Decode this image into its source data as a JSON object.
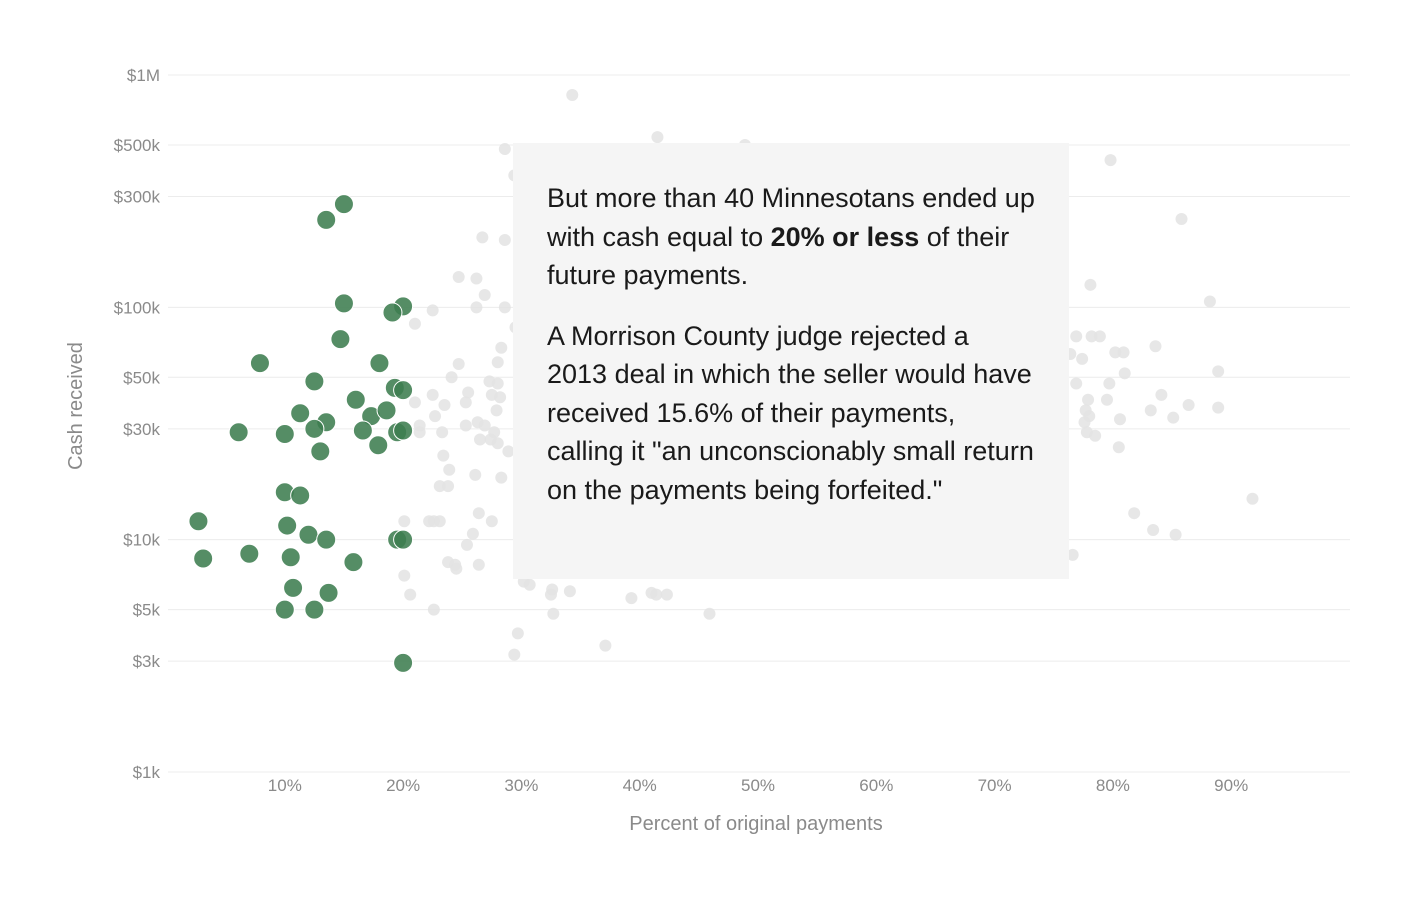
{
  "annotation": {
    "paragraph1": {
      "before": "But more than 40 Minnesotans ended up with cash equal to ",
      "emphasis": "20% or less",
      "after": " of their future payments."
    },
    "paragraph2": "A Morrison County judge rejected a 2013 deal in which the seller would have received 15.6% of their payments, calling it \"an unconscionably small return on the payments being forfeited.\""
  },
  "chart_data": {
    "type": "scatter",
    "xlabel": "Percent of original payments",
    "ylabel": "Cash received",
    "x_scale": "linear",
    "y_scale": "log",
    "xlim": [
      0,
      100
    ],
    "ylim": [
      1000,
      1000000
    ],
    "x_ticks": [
      {
        "value": 10,
        "label": "10%"
      },
      {
        "value": 20,
        "label": "20%"
      },
      {
        "value": 30,
        "label": "30%"
      },
      {
        "value": 40,
        "label": "40%"
      },
      {
        "value": 50,
        "label": "50%"
      },
      {
        "value": 60,
        "label": "60%"
      },
      {
        "value": 70,
        "label": "70%"
      },
      {
        "value": 80,
        "label": "80%"
      },
      {
        "value": 90,
        "label": "90%"
      }
    ],
    "y_ticks": [
      {
        "value": 1000,
        "label": "$1k"
      },
      {
        "value": 3000,
        "label": "$3k"
      },
      {
        "value": 5000,
        "label": "$5k"
      },
      {
        "value": 10000,
        "label": "$10k"
      },
      {
        "value": 30000,
        "label": "$30k"
      },
      {
        "value": 50000,
        "label": "$50k"
      },
      {
        "value": 100000,
        "label": "$100k"
      },
      {
        "value": 300000,
        "label": "$300k"
      },
      {
        "value": 500000,
        "label": "$500k"
      },
      {
        "value": 1000000,
        "label": "$1M"
      }
    ],
    "grid": true,
    "colors": {
      "highlighted": "#3e7d50",
      "other": "#e3e3e3"
    },
    "series": [
      {
        "group": "other",
        "points": [
          [
            34.3,
            820000
          ],
          [
            41.5,
            540000
          ],
          [
            48.9,
            500000
          ],
          [
            28.6,
            480000
          ],
          [
            29.4,
            370000
          ],
          [
            26.7,
            200000
          ],
          [
            28.6,
            195000
          ],
          [
            24.7,
            135000
          ],
          [
            26.2,
            133000
          ],
          [
            26.9,
            113000
          ],
          [
            26.2,
            100000
          ],
          [
            28.6,
            100000
          ],
          [
            22.5,
            97000
          ],
          [
            21,
            85000
          ],
          [
            29.5,
            82000
          ],
          [
            28.3,
            67000
          ],
          [
            24.7,
            57000
          ],
          [
            28,
            58000
          ],
          [
            24.1,
            50000
          ],
          [
            27.3,
            48000
          ],
          [
            28,
            47000
          ],
          [
            25.5,
            43000
          ],
          [
            27.5,
            42000
          ],
          [
            28.2,
            41000
          ],
          [
            22.5,
            42000
          ],
          [
            25.3,
            39000
          ],
          [
            23.5,
            38000
          ],
          [
            21,
            39000
          ],
          [
            27.9,
            36000
          ],
          [
            22.7,
            34000
          ],
          [
            26.3,
            32000
          ],
          [
            26.9,
            31000
          ],
          [
            21.4,
            31000
          ],
          [
            25.3,
            31000
          ],
          [
            23.3,
            29000
          ],
          [
            27.7,
            29000
          ],
          [
            21.4,
            29000
          ],
          [
            26.5,
            27000
          ],
          [
            27.4,
            27000
          ],
          [
            28,
            26000
          ],
          [
            28.9,
            24000
          ],
          [
            23.4,
            23000
          ],
          [
            23.9,
            20000
          ],
          [
            26.1,
            19000
          ],
          [
            28.3,
            18500
          ],
          [
            23.1,
            17000
          ],
          [
            23.8,
            17000
          ],
          [
            26.4,
            13000
          ],
          [
            20.1,
            12000
          ],
          [
            22.2,
            12000
          ],
          [
            23.1,
            12000
          ],
          [
            27.5,
            12000
          ],
          [
            22.6,
            12000
          ],
          [
            25.9,
            10600
          ],
          [
            25.4,
            9500
          ],
          [
            23.8,
            8000
          ],
          [
            24.4,
            7800
          ],
          [
            26.4,
            7800
          ],
          [
            24.5,
            7500
          ],
          [
            20.1,
            7000
          ],
          [
            30.2,
            6600
          ],
          [
            30.7,
            6400
          ],
          [
            20.6,
            5800
          ],
          [
            22.6,
            5000
          ],
          [
            32.6,
            6100
          ],
          [
            34.1,
            6000
          ],
          [
            32.5,
            5800
          ],
          [
            39.3,
            5600
          ],
          [
            41,
            5900
          ],
          [
            41.4,
            5800
          ],
          [
            42.3,
            5800
          ],
          [
            45.9,
            4800
          ],
          [
            32.7,
            4800
          ],
          [
            29.7,
            3950
          ],
          [
            37.1,
            3500
          ],
          [
            29.4,
            3200
          ],
          [
            79.8,
            430000
          ],
          [
            85.8,
            240000
          ],
          [
            78.1,
            125000
          ],
          [
            88.2,
            106000
          ],
          [
            76.9,
            75000
          ],
          [
            78.2,
            75000
          ],
          [
            78.9,
            75000
          ],
          [
            76.4,
            63000
          ],
          [
            80.2,
            64000
          ],
          [
            80.9,
            64000
          ],
          [
            83.6,
            68000
          ],
          [
            77.4,
            60000
          ],
          [
            81,
            52000
          ],
          [
            88.9,
            53000
          ],
          [
            76.9,
            47000
          ],
          [
            79.7,
            47000
          ],
          [
            84.1,
            42000
          ],
          [
            77.9,
            40000
          ],
          [
            79.5,
            40000
          ],
          [
            86.4,
            38000
          ],
          [
            88.9,
            37000
          ],
          [
            77.7,
            36000
          ],
          [
            83.2,
            36000
          ],
          [
            78,
            34000
          ],
          [
            85.1,
            33500
          ],
          [
            80.6,
            33000
          ],
          [
            77.6,
            32000
          ],
          [
            77.8,
            29000
          ],
          [
            78.5,
            28000
          ],
          [
            80.5,
            25000
          ],
          [
            91.8,
            15000
          ],
          [
            81.8,
            13000
          ],
          [
            83.4,
            11000
          ],
          [
            85.3,
            10500
          ],
          [
            76.6,
            8600
          ]
        ]
      },
      {
        "group": "highlighted",
        "points": [
          [
            15,
            278000
          ],
          [
            13.5,
            238000
          ],
          [
            15,
            104000
          ],
          [
            20,
            101000
          ],
          [
            19.1,
            95000
          ],
          [
            14.7,
            73000
          ],
          [
            7.9,
            57500
          ],
          [
            18,
            57500
          ],
          [
            12.5,
            48000
          ],
          [
            19.3,
            45000
          ],
          [
            20,
            44000
          ],
          [
            16,
            40000
          ],
          [
            11.3,
            35000
          ],
          [
            17.3,
            34000
          ],
          [
            18.6,
            36000
          ],
          [
            13.5,
            32000
          ],
          [
            6.1,
            29000
          ],
          [
            10,
            28500
          ],
          [
            12.5,
            30000
          ],
          [
            16.6,
            29500
          ],
          [
            19.5,
            29000
          ],
          [
            20,
            29500
          ],
          [
            17.9,
            25500
          ],
          [
            13,
            24000
          ],
          [
            10,
            16000
          ],
          [
            11.3,
            15500
          ],
          [
            2.7,
            12000
          ],
          [
            10.2,
            11500
          ],
          [
            12,
            10500
          ],
          [
            13.5,
            10000
          ],
          [
            19.5,
            10000
          ],
          [
            20,
            10000
          ],
          [
            7,
            8700
          ],
          [
            10.5,
            8400
          ],
          [
            3.1,
            8300
          ],
          [
            15.8,
            8000
          ],
          [
            10.7,
            6200
          ],
          [
            13.7,
            5900
          ],
          [
            10,
            5000
          ],
          [
            12.5,
            5000
          ],
          [
            20,
            2950
          ]
        ]
      }
    ]
  }
}
